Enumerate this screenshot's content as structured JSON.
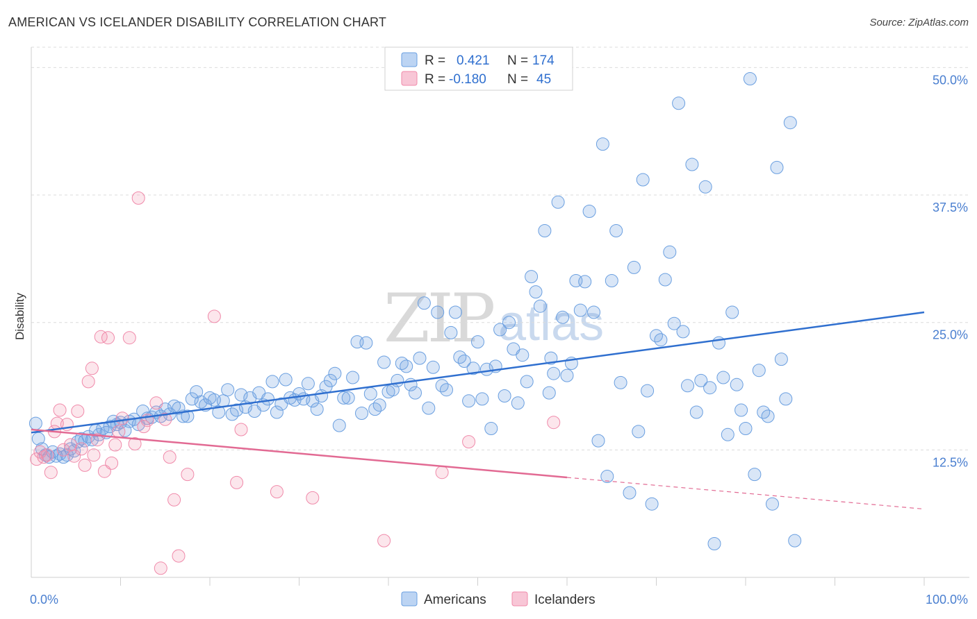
{
  "title": "AMERICAN VS ICELANDER DISABILITY CORRELATION CHART",
  "source": "Source: ZipAtlas.com",
  "watermark": {
    "part1": "ZIP",
    "part2": "atlas"
  },
  "chart_data": {
    "type": "scatter",
    "ylabel": "Disability",
    "xlim": [
      0,
      100
    ],
    "ylim": [
      0,
      52
    ],
    "x_tick_labels": [
      {
        "value": 0,
        "label": "0.0%"
      },
      {
        "value": 100,
        "label": "100.0%"
      }
    ],
    "y_ticks": [
      {
        "value": 12.5,
        "label": "12.5%"
      },
      {
        "value": 25,
        "label": "25.0%"
      },
      {
        "value": 37.5,
        "label": "37.5%"
      },
      {
        "value": 50,
        "label": "50.0%"
      }
    ],
    "legend": {
      "rows": [
        {
          "r_label": "R =",
          "r_value": "0.421",
          "n_label": "N =",
          "n_value": "174"
        },
        {
          "r_label": "R =",
          "r_value": "-0.180",
          "n_label": "N =",
          "n_value": "45"
        }
      ]
    },
    "series": [
      {
        "name": "Americans",
        "color": "#6a9fe0",
        "line_color": "#2f6fcf",
        "trend": {
          "x0": 0,
          "y0": 14.2,
          "x1": 100,
          "y1": 26.0
        },
        "points": [
          [
            0.5,
            15.1
          ],
          [
            0.8,
            13.6
          ],
          [
            1.2,
            12.6
          ],
          [
            1.6,
            12.0
          ],
          [
            2.0,
            11.8
          ],
          [
            2.4,
            12.3
          ],
          [
            2.8,
            11.9
          ],
          [
            3.2,
            12.1
          ],
          [
            3.6,
            11.8
          ],
          [
            4.0,
            12.0
          ],
          [
            4.4,
            12.6
          ],
          [
            4.8,
            12.4
          ],
          [
            5.2,
            13.3
          ],
          [
            5.6,
            13.6
          ],
          [
            6.0,
            13.4
          ],
          [
            6.4,
            13.8
          ],
          [
            6.8,
            13.5
          ],
          [
            7.2,
            14.4
          ],
          [
            7.6,
            14.0
          ],
          [
            8.0,
            14.6
          ],
          [
            8.4,
            14.2
          ],
          [
            8.8,
            14.8
          ],
          [
            9.2,
            15.3
          ],
          [
            9.6,
            15.0
          ],
          [
            10.0,
            15.2
          ],
          [
            10.5,
            14.4
          ],
          [
            11.0,
            15.3
          ],
          [
            11.5,
            15.5
          ],
          [
            12.0,
            15.0
          ],
          [
            12.5,
            16.3
          ],
          [
            13.0,
            15.6
          ],
          [
            13.5,
            15.7
          ],
          [
            14.0,
            16.2
          ],
          [
            14.5,
            15.8
          ],
          [
            15.0,
            16.5
          ],
          [
            15.5,
            16.0
          ],
          [
            16.0,
            16.8
          ],
          [
            16.5,
            16.6
          ],
          [
            17.0,
            15.8
          ],
          [
            17.5,
            15.8
          ],
          [
            18.0,
            17.5
          ],
          [
            18.5,
            18.2
          ],
          [
            19.0,
            17.2
          ],
          [
            19.5,
            16.9
          ],
          [
            20.0,
            17.6
          ],
          [
            20.5,
            17.4
          ],
          [
            21.0,
            16.2
          ],
          [
            21.5,
            17.3
          ],
          [
            22.0,
            18.4
          ],
          [
            22.5,
            16.0
          ],
          [
            23.0,
            16.4
          ],
          [
            23.5,
            17.9
          ],
          [
            24.0,
            16.7
          ],
          [
            24.5,
            17.6
          ],
          [
            25.0,
            16.3
          ],
          [
            25.5,
            18.1
          ],
          [
            26.0,
            16.9
          ],
          [
            26.5,
            17.5
          ],
          [
            27.0,
            19.2
          ],
          [
            27.5,
            16.2
          ],
          [
            28.0,
            17.0
          ],
          [
            28.5,
            19.4
          ],
          [
            29.0,
            17.6
          ],
          [
            29.5,
            17.4
          ],
          [
            30.0,
            18.0
          ],
          [
            30.5,
            17.5
          ],
          [
            31.0,
            19.0
          ],
          [
            31.5,
            17.3
          ],
          [
            32.0,
            16.5
          ],
          [
            32.5,
            17.8
          ],
          [
            33.0,
            18.7
          ],
          [
            33.5,
            19.3
          ],
          [
            34.0,
            20.0
          ],
          [
            34.5,
            14.9
          ],
          [
            35.0,
            17.6
          ],
          [
            35.5,
            17.6
          ],
          [
            36.0,
            19.6
          ],
          [
            36.5,
            23.1
          ],
          [
            37.0,
            16.1
          ],
          [
            37.5,
            23.0
          ],
          [
            38.0,
            18.0
          ],
          [
            38.5,
            16.5
          ],
          [
            39.0,
            16.9
          ],
          [
            39.5,
            21.1
          ],
          [
            40.0,
            18.2
          ],
          [
            40.5,
            18.4
          ],
          [
            41.0,
            19.3
          ],
          [
            41.5,
            21.0
          ],
          [
            42.0,
            20.7
          ],
          [
            42.5,
            18.9
          ],
          [
            43.0,
            18.1
          ],
          [
            43.5,
            21.5
          ],
          [
            44.0,
            26.9
          ],
          [
            44.5,
            16.6
          ],
          [
            45.0,
            20.6
          ],
          [
            45.5,
            26.0
          ],
          [
            46.0,
            18.8
          ],
          [
            46.5,
            18.4
          ],
          [
            47.0,
            24.0
          ],
          [
            47.5,
            26.0
          ],
          [
            48.0,
            21.6
          ],
          [
            48.5,
            21.2
          ],
          [
            49.0,
            17.3
          ],
          [
            49.5,
            20.5
          ],
          [
            50.0,
            23.1
          ],
          [
            50.5,
            17.5
          ],
          [
            51.0,
            20.4
          ],
          [
            51.5,
            14.6
          ],
          [
            52.0,
            20.7
          ],
          [
            52.5,
            24.3
          ],
          [
            53.0,
            17.8
          ],
          [
            53.5,
            25.0
          ],
          [
            54.0,
            22.4
          ],
          [
            54.5,
            17.1
          ],
          [
            55.0,
            21.8
          ],
          [
            55.5,
            19.2
          ],
          [
            56.0,
            29.5
          ],
          [
            56.5,
            28.0
          ],
          [
            57.0,
            26.6
          ],
          [
            57.5,
            34.0
          ],
          [
            58.0,
            18.1
          ],
          [
            58.2,
            21.5
          ],
          [
            58.5,
            20.0
          ],
          [
            59.0,
            36.8
          ],
          [
            59.5,
            25.5
          ],
          [
            60.0,
            19.8
          ],
          [
            60.5,
            21.0
          ],
          [
            61.0,
            29.1
          ],
          [
            61.5,
            26.2
          ],
          [
            62.0,
            29.0
          ],
          [
            62.5,
            35.9
          ],
          [
            63.0,
            26.0
          ],
          [
            63.5,
            13.4
          ],
          [
            64.0,
            42.5
          ],
          [
            64.5,
            9.9
          ],
          [
            65.0,
            29.1
          ],
          [
            65.5,
            34.0
          ],
          [
            66.0,
            19.1
          ],
          [
            67.0,
            8.3
          ],
          [
            67.5,
            30.4
          ],
          [
            68.0,
            14.3
          ],
          [
            68.5,
            39.0
          ],
          [
            69.0,
            18.3
          ],
          [
            69.5,
            7.2
          ],
          [
            70.0,
            23.7
          ],
          [
            70.5,
            23.3
          ],
          [
            71.0,
            29.2
          ],
          [
            71.5,
            31.9
          ],
          [
            72.0,
            24.9
          ],
          [
            72.5,
            46.5
          ],
          [
            73.0,
            24.1
          ],
          [
            73.5,
            18.8
          ],
          [
            74.0,
            40.5
          ],
          [
            74.5,
            16.2
          ],
          [
            75.0,
            19.3
          ],
          [
            75.5,
            38.3
          ],
          [
            76.0,
            18.6
          ],
          [
            76.5,
            3.3
          ],
          [
            77.0,
            23.0
          ],
          [
            77.5,
            19.6
          ],
          [
            78.0,
            14.0
          ],
          [
            78.5,
            26.0
          ],
          [
            79.0,
            18.9
          ],
          [
            79.5,
            16.4
          ],
          [
            80.0,
            14.6
          ],
          [
            80.5,
            48.9
          ],
          [
            81.0,
            10.1
          ],
          [
            81.5,
            20.3
          ],
          [
            82.0,
            16.2
          ],
          [
            82.5,
            15.8
          ],
          [
            83.0,
            7.2
          ],
          [
            83.5,
            40.2
          ],
          [
            84.0,
            21.4
          ],
          [
            84.5,
            17.5
          ],
          [
            85.0,
            44.6
          ],
          [
            85.5,
            3.6
          ]
        ]
      },
      {
        "name": "Icelanders",
        "color": "#f08aaa",
        "line_color": "#e26a93",
        "trend": {
          "x0": 0,
          "y0": 14.5,
          "x1": 60,
          "y1": 9.8
        },
        "trend_dashed": {
          "x0": 60,
          "y0": 9.8,
          "x1": 100,
          "y1": 6.7
        },
        "points": [
          [
            0.6,
            11.6
          ],
          [
            1.0,
            12.3
          ],
          [
            1.4,
            11.8
          ],
          [
            1.8,
            12.0
          ],
          [
            2.2,
            10.3
          ],
          [
            2.6,
            14.3
          ],
          [
            2.9,
            15.1
          ],
          [
            3.2,
            16.4
          ],
          [
            3.6,
            12.5
          ],
          [
            4.0,
            15.0
          ],
          [
            4.4,
            13.0
          ],
          [
            4.8,
            11.9
          ],
          [
            5.2,
            16.3
          ],
          [
            5.6,
            12.6
          ],
          [
            6.0,
            11.0
          ],
          [
            6.4,
            19.2
          ],
          [
            6.8,
            20.5
          ],
          [
            7.0,
            12.0
          ],
          [
            7.4,
            13.5
          ],
          [
            7.8,
            23.6
          ],
          [
            8.2,
            10.4
          ],
          [
            8.6,
            23.5
          ],
          [
            9.0,
            11.2
          ],
          [
            9.4,
            13.0
          ],
          [
            9.8,
            14.3
          ],
          [
            10.2,
            15.6
          ],
          [
            11.0,
            23.5
          ],
          [
            11.6,
            13.1
          ],
          [
            12.0,
            37.2
          ],
          [
            12.6,
            14.8
          ],
          [
            13.0,
            15.4
          ],
          [
            14.0,
            17.1
          ],
          [
            14.5,
            0.9
          ],
          [
            15.0,
            15.5
          ],
          [
            15.5,
            11.8
          ],
          [
            16.0,
            7.6
          ],
          [
            16.5,
            2.1
          ],
          [
            17.5,
            10.1
          ],
          [
            20.5,
            25.6
          ],
          [
            23.0,
            9.3
          ],
          [
            23.5,
            14.5
          ],
          [
            27.5,
            8.4
          ],
          [
            31.5,
            7.8
          ],
          [
            39.5,
            3.6
          ],
          [
            46.0,
            10.3
          ],
          [
            49.0,
            13.3
          ],
          [
            58.5,
            15.2
          ]
        ]
      }
    ]
  }
}
